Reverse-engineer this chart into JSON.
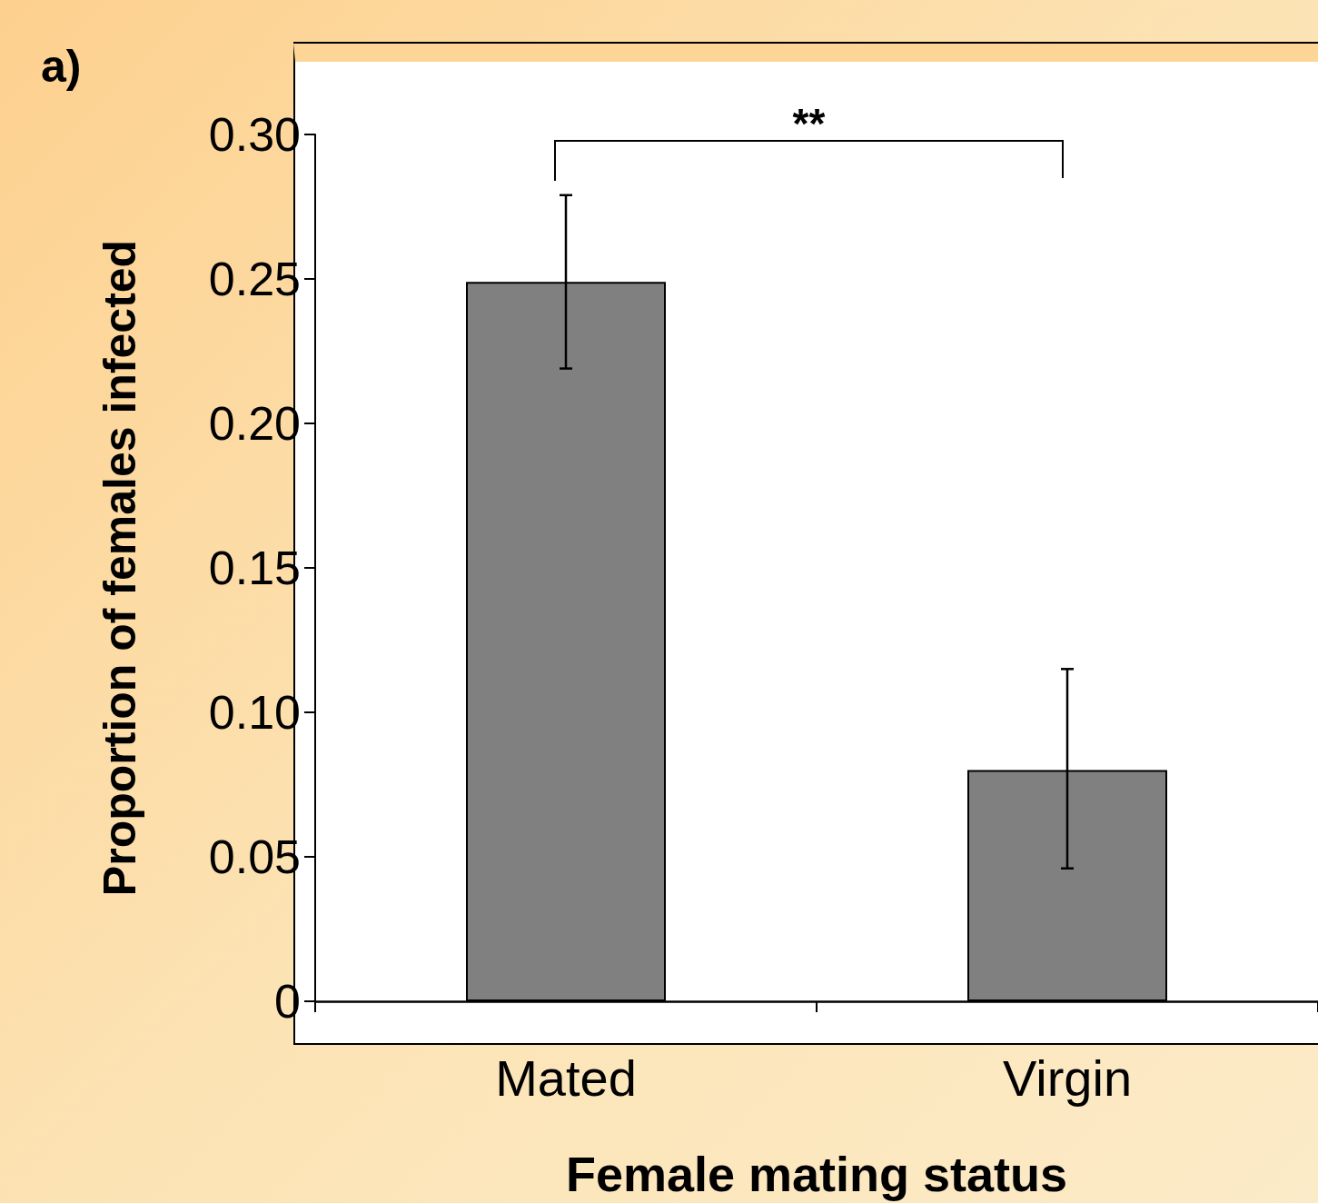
{
  "chart_data": {
    "type": "bar",
    "xlabel": "Female mating status",
    "ylabel": "Proportion of females infected",
    "categories": [
      "Mated",
      "Virgin"
    ],
    "series": [
      {
        "color": "#808080",
        "values": [
          0.249,
          0.08
        ],
        "errors": [
          [
            0.219,
            0.279
          ],
          [
            0.046,
            0.115
          ]
        ]
      }
    ],
    "ylim": [
      0,
      0.3
    ],
    "yticks": [
      0,
      {
        "value": 0.05,
        "label": "0.05"
      },
      {
        "value": 0.1,
        "label": "0.10"
      },
      {
        "value": 0.15,
        "label": "0.15"
      },
      {
        "value": 0.2,
        "label": "0.20"
      },
      {
        "value": 0.25,
        "label": "0.25"
      },
      {
        "value": 0.3,
        "label": "0.30"
      }
    ],
    "annotations": [
      "a)",
      "**"
    ]
  }
}
